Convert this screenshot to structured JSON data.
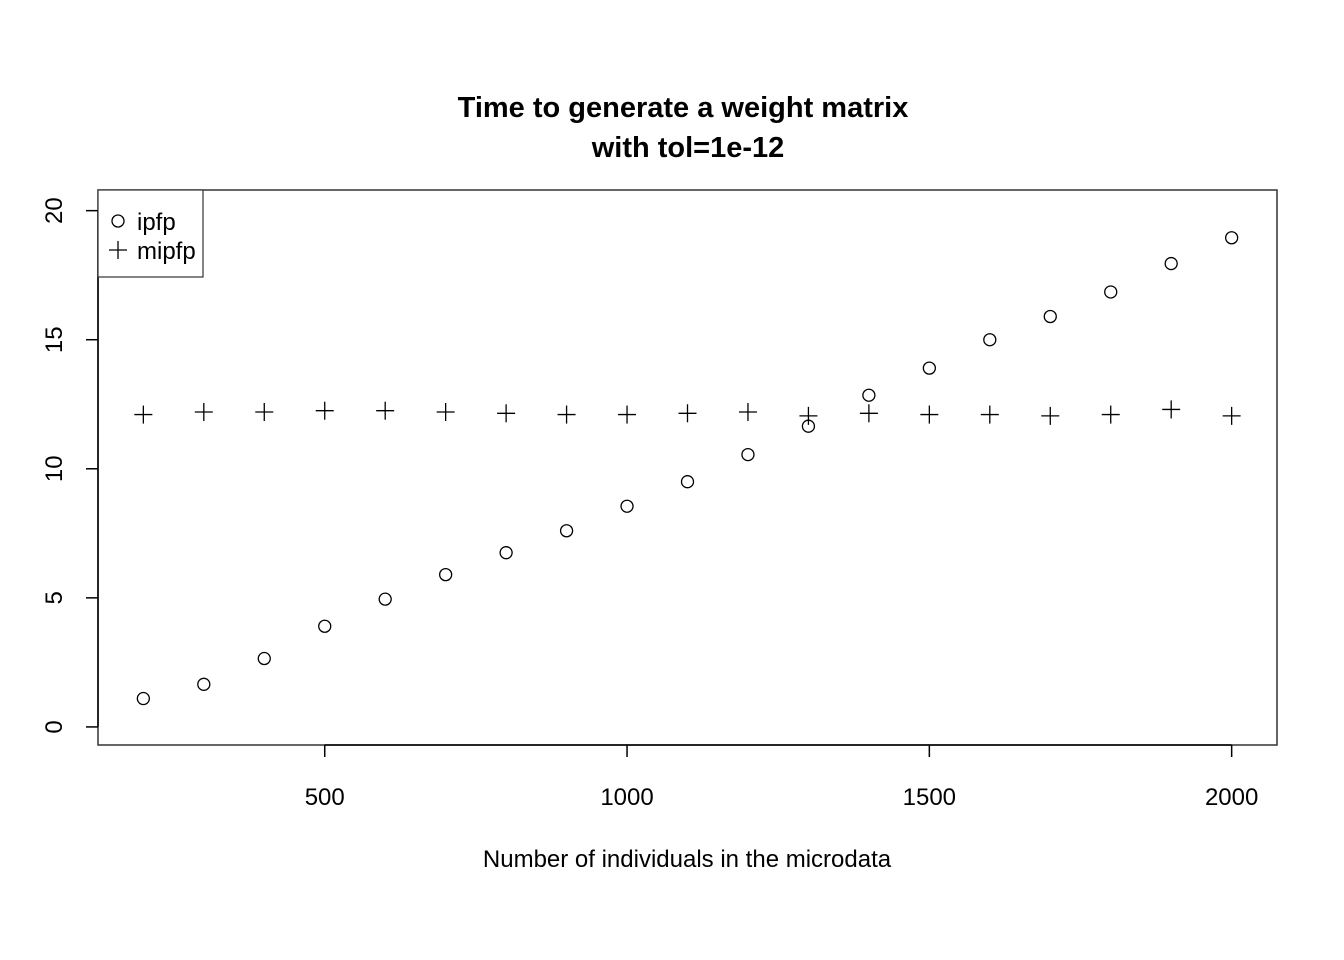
{
  "chart_data": {
    "type": "scatter",
    "title_lines": [
      "Time to generate a weight matrix",
      "with tol=1e-12"
    ],
    "xlabel": "Number of individuals in the microdata",
    "ylabel": "",
    "xlim": [
      125,
      2075
    ],
    "ylim": [
      -0.7,
      20.8
    ],
    "x_ticks": [
      500,
      1000,
      1500,
      2000
    ],
    "y_ticks": [
      0,
      5,
      10,
      15,
      20
    ],
    "x_tick_labels": [
      "500",
      "1000",
      "1500",
      "2000"
    ],
    "y_tick_labels": [
      "0",
      "5",
      "10",
      "15",
      "20"
    ],
    "legend_position": "top-left",
    "x": [
      200,
      300,
      400,
      500,
      600,
      700,
      800,
      900,
      1000,
      1100,
      1200,
      1300,
      1400,
      1500,
      1600,
      1700,
      1800,
      1900,
      2000
    ],
    "series": [
      {
        "name": "ipfp",
        "marker": "circle",
        "values": [
          1.1,
          1.65,
          2.65,
          3.9,
          4.95,
          5.9,
          6.75,
          7.6,
          8.55,
          9.5,
          10.55,
          11.65,
          12.85,
          13.9,
          15.0,
          15.9,
          16.85,
          17.95,
          18.95
        ]
      },
      {
        "name": "mipfp",
        "marker": "plus",
        "values": [
          12.1,
          12.2,
          12.2,
          12.25,
          12.25,
          12.2,
          12.15,
          12.1,
          12.1,
          12.15,
          12.2,
          12.05,
          12.15,
          12.1,
          12.1,
          12.05,
          12.1,
          12.3,
          12.05
        ]
      }
    ],
    "colors": {
      "points": "#000000",
      "frame": "#333333"
    }
  }
}
